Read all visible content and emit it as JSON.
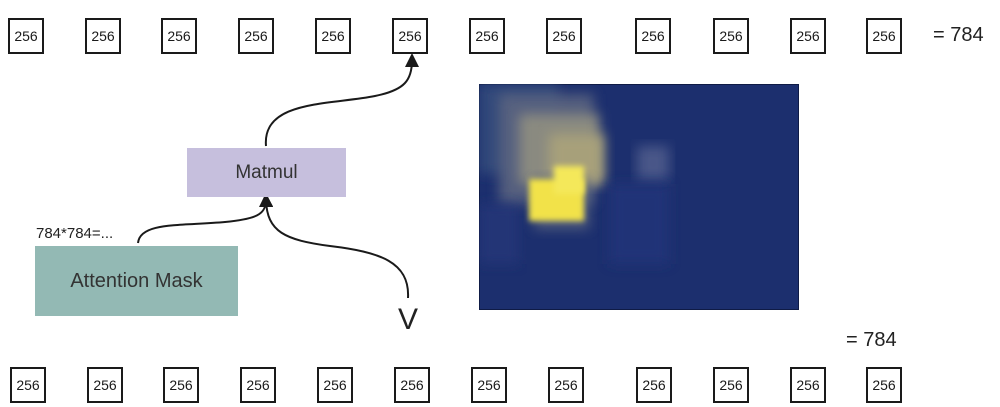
{
  "top_row": {
    "tokens": [
      "256",
      "256",
      "256",
      "256",
      "256",
      "256",
      "256",
      "256",
      "256",
      "256",
      "256",
      "256"
    ],
    "total": "= 784"
  },
  "bottom_row": {
    "tokens": [
      "256",
      "256",
      "256",
      "256",
      "256",
      "256",
      "256",
      "256",
      "256",
      "256",
      "256",
      "256"
    ],
    "total": "= 784"
  },
  "matmul": {
    "label": "Matmul"
  },
  "attention_mask": {
    "label": "Attention Mask",
    "dimension": "784*784=..."
  },
  "value": {
    "label": "V"
  },
  "colors": {
    "matmul_fill": "#c6bfdd",
    "mask_fill": "#93b9b4",
    "heatmap_bg": "#1c2f6e",
    "heatmap_hot": "#f2e24a",
    "arrow": "#1a1a1a"
  }
}
